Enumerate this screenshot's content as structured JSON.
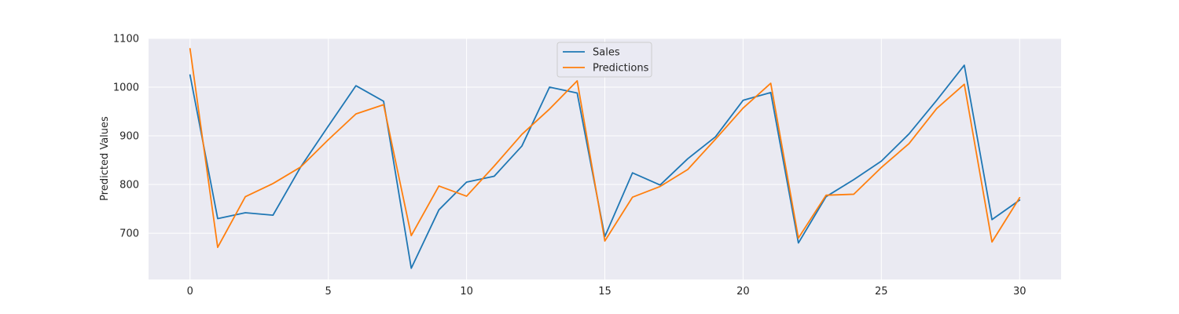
{
  "chart_data": {
    "type": "line",
    "title": "",
    "xlabel": "",
    "ylabel": "Predicted Values",
    "xlim": [
      -1.5,
      31.5
    ],
    "ylim": [
      605,
      1100
    ],
    "xticks": [
      0,
      5,
      10,
      15,
      20,
      25,
      30
    ],
    "yticks": [
      700,
      800,
      900,
      1000,
      1100
    ],
    "grid": true,
    "legend_position": "top-center",
    "x": [
      0,
      1,
      2,
      3,
      4,
      5,
      6,
      7,
      8,
      9,
      10,
      11,
      12,
      13,
      14,
      15,
      16,
      17,
      18,
      19,
      20,
      21,
      22,
      23,
      24,
      25,
      26,
      27,
      28,
      29,
      30
    ],
    "series": [
      {
        "name": "Sales",
        "color": "#1f77b4",
        "values": [
          1025,
          730,
          742,
          737,
          836,
          920,
          1003,
          971,
          628,
          748,
          805,
          817,
          879,
          1000,
          988,
          693,
          824,
          799,
          853,
          898,
          973,
          989,
          680,
          775,
          810,
          848,
          904,
          973,
          1045,
          728,
          768
        ]
      },
      {
        "name": "Predictions",
        "color": "#ff7f0e",
        "values": [
          1079,
          671,
          775,
          802,
          836,
          892,
          945,
          964,
          695,
          797,
          776,
          838,
          903,
          955,
          1013,
          684,
          774,
          796,
          831,
          893,
          957,
          1008,
          690,
          778,
          780,
          835,
          884,
          956,
          1006,
          682,
          773
        ]
      }
    ]
  }
}
